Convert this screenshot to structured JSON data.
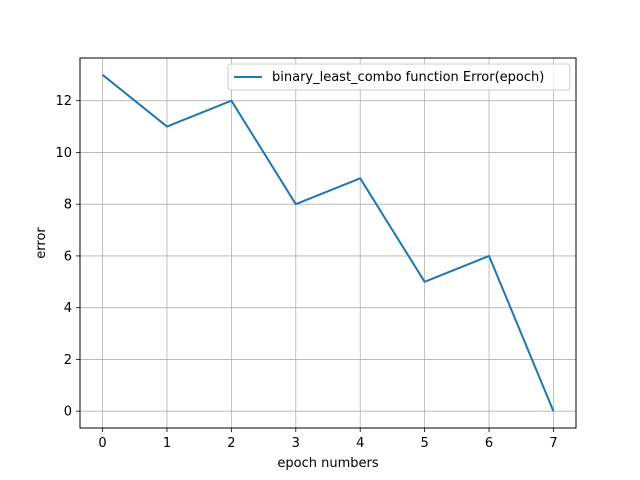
{
  "chart_data": {
    "type": "line",
    "title": "",
    "xlabel": "epoch numbers",
    "ylabel": "error",
    "x": [
      0,
      1,
      2,
      3,
      4,
      5,
      6,
      7
    ],
    "series": [
      {
        "name": "binary_least_combo function Error(epoch)",
        "values": [
          13,
          11,
          12,
          8,
          9,
          5,
          6,
          0
        ],
        "color": "#1f77b4"
      }
    ],
    "x_ticks": [
      0,
      1,
      2,
      3,
      4,
      5,
      6,
      7
    ],
    "y_ticks": [
      0,
      2,
      4,
      6,
      8,
      10,
      12
    ],
    "xlim": [
      -0.35,
      7.35
    ],
    "ylim": [
      -0.65,
      13.65
    ],
    "grid": true,
    "legend_position": "upper-right"
  }
}
